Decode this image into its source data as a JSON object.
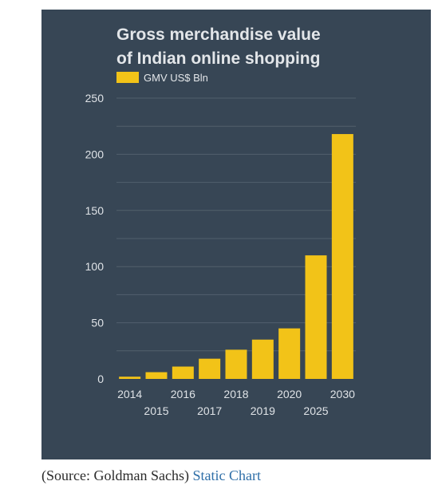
{
  "chart_data": {
    "type": "bar",
    "title_lines": [
      "Gross merchandise value",
      "of Indian online shopping"
    ],
    "series": [
      {
        "name": "GMV US$ Bln",
        "values": [
          2,
          6,
          11,
          18,
          26,
          35,
          45,
          110,
          218
        ]
      }
    ],
    "categories": [
      "2014",
      "2015",
      "2016",
      "2017",
      "2018",
      "2019",
      "2020",
      "2025",
      "2030"
    ],
    "yticks": [
      "0",
      "50",
      "100",
      "150",
      "200",
      "250"
    ],
    "ylim": [
      0,
      250
    ],
    "grid": true,
    "legend_position": "top-left",
    "colors": {
      "background": "#374655",
      "bar": "#f2c318",
      "grid": "#52606d"
    }
  },
  "caption": {
    "source_text": "(Source: Goldman Sachs)",
    "link_text": "Static Chart"
  }
}
